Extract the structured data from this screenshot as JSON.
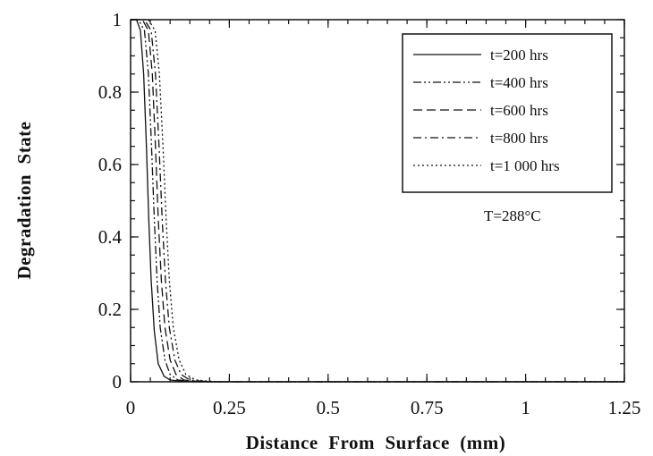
{
  "chart_data": {
    "type": "line",
    "title": "",
    "xlabel": "Distance  From  Surface  (mm)",
    "ylabel": "Degradation  State",
    "xlim": [
      0,
      1.25
    ],
    "ylim": [
      0,
      1
    ],
    "xticks": [
      "0",
      "0.25",
      "0.5",
      "0.75",
      "1",
      "1.25"
    ],
    "yticks": [
      "0",
      "0.2",
      "0.4",
      "0.6",
      "0.8",
      "1"
    ],
    "grid": false,
    "legend_position": "top-right",
    "annotation": "T=288°C",
    "series": [
      {
        "name": "t=200 hrs",
        "dash": "solid",
        "x": [
          0,
          0.015,
          0.025,
          0.033,
          0.04,
          0.046,
          0.052,
          0.06,
          0.07,
          0.085,
          0.1,
          0.15,
          1.25
        ],
        "y": [
          1,
          1,
          0.97,
          0.85,
          0.65,
          0.45,
          0.28,
          0.14,
          0.05,
          0.015,
          0.005,
          0,
          0
        ]
      },
      {
        "name": "t=400 hrs",
        "dash": "dash-dot-dot",
        "x": [
          0,
          0.02,
          0.035,
          0.045,
          0.053,
          0.06,
          0.067,
          0.075,
          0.087,
          0.1,
          0.12,
          0.17,
          1.25
        ],
        "y": [
          1,
          1,
          0.97,
          0.85,
          0.65,
          0.45,
          0.28,
          0.15,
          0.06,
          0.02,
          0.005,
          0,
          0
        ]
      },
      {
        "name": "t=600 hrs",
        "dash": "long-dash",
        "x": [
          0,
          0.03,
          0.045,
          0.055,
          0.063,
          0.07,
          0.078,
          0.087,
          0.1,
          0.115,
          0.135,
          0.18,
          1.25
        ],
        "y": [
          1,
          1,
          0.97,
          0.85,
          0.65,
          0.45,
          0.28,
          0.15,
          0.06,
          0.02,
          0.005,
          0,
          0
        ]
      },
      {
        "name": "t=800 hrs",
        "dash": "dash-dot",
        "x": [
          0,
          0.035,
          0.052,
          0.063,
          0.072,
          0.08,
          0.088,
          0.098,
          0.112,
          0.128,
          0.15,
          0.2,
          1.25
        ],
        "y": [
          1,
          1,
          0.97,
          0.85,
          0.65,
          0.45,
          0.28,
          0.15,
          0.06,
          0.02,
          0.005,
          0,
          0
        ]
      },
      {
        "name": "t=1 000 hrs",
        "dash": "dotted",
        "x": [
          0,
          0.045,
          0.062,
          0.073,
          0.082,
          0.09,
          0.098,
          0.108,
          0.123,
          0.14,
          0.165,
          0.22,
          1.25
        ],
        "y": [
          1,
          1,
          0.97,
          0.85,
          0.65,
          0.45,
          0.28,
          0.15,
          0.06,
          0.02,
          0.005,
          0,
          0
        ]
      }
    ]
  }
}
